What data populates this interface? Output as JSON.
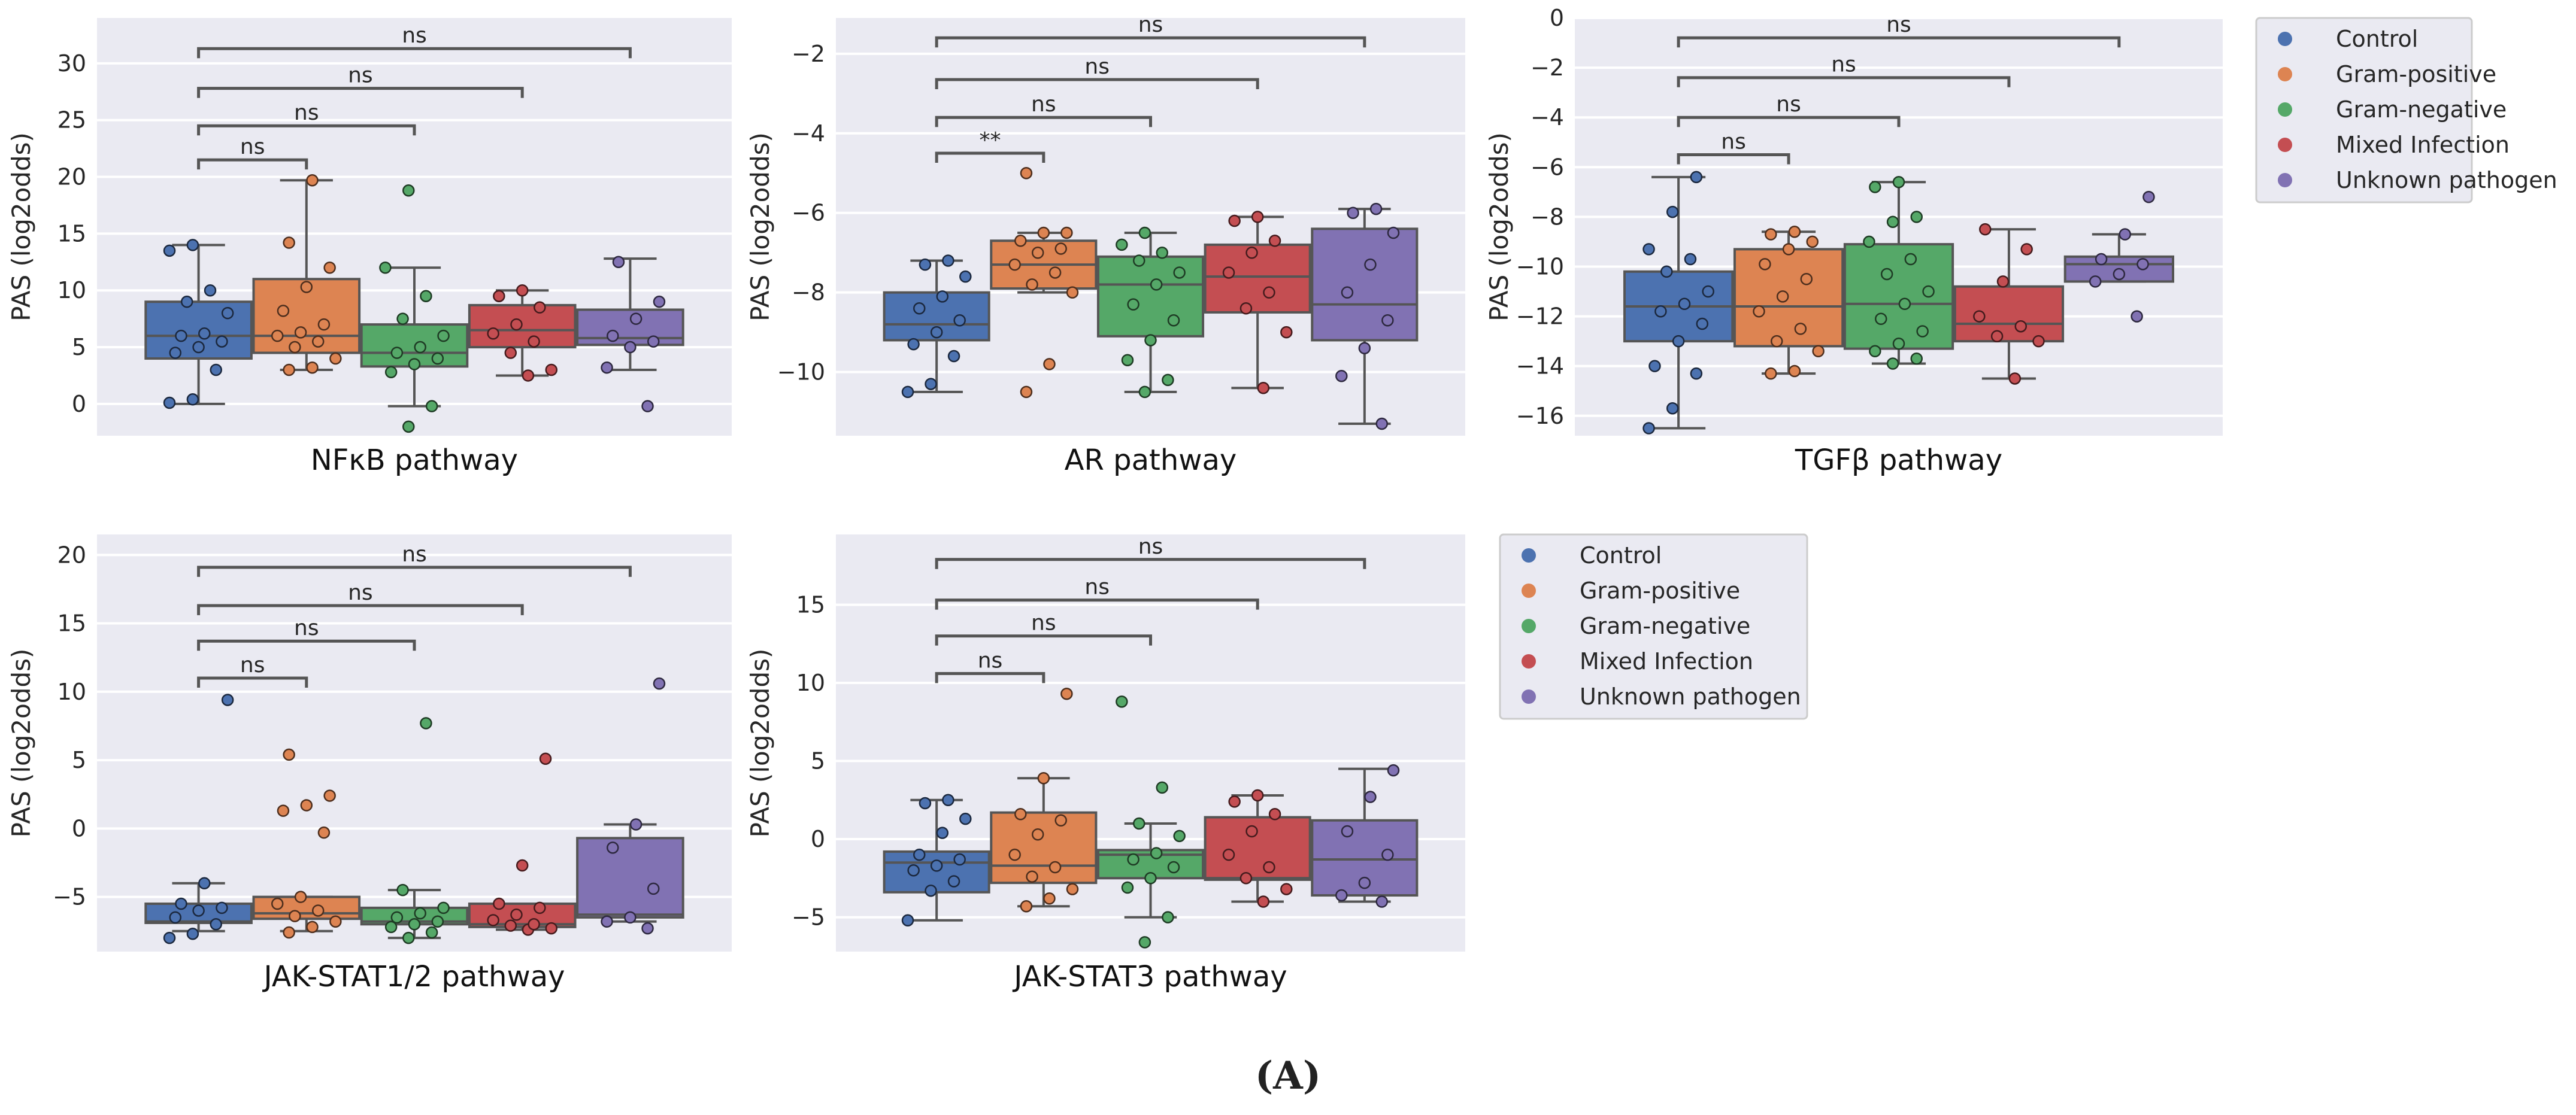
{
  "figure_label": "(A)",
  "colors": {
    "Control": "#4c72b0",
    "Gram-positive": "#dd8452",
    "Gram-negative": "#55a868",
    "Mixed Infection": "#c44e52",
    "Unknown pathogen": "#8172b3",
    "axes_bg": "#eaeaf2",
    "grid": "#ffffff",
    "bracket": "#555555"
  },
  "legends": [
    {
      "entries": [
        "Control",
        "Gram-positive",
        "Gram-negative",
        "Mixed Infection",
        "Unknown pathogen"
      ]
    },
    {
      "entries": [
        "Control",
        "Gram-positive",
        "Gram-negative",
        "Mixed Infection",
        "Unknown pathogen"
      ]
    }
  ],
  "chart_data": [
    {
      "type": "box",
      "title": "NFκB pathway",
      "xlabel": "NFκB pathway",
      "ylabel": "PAS (log2odds)",
      "ylim": [
        -2.8,
        34
      ],
      "yticks": [
        0,
        5,
        10,
        15,
        20,
        25,
        30
      ],
      "ytick_labels": [
        "0",
        "5",
        "10",
        "15",
        "20",
        "25",
        "30"
      ],
      "groups": [
        "Control",
        "Gram-positive",
        "Gram-negative",
        "Mixed Infection",
        "Unknown pathogen"
      ],
      "boxes": [
        {
          "group": "Control",
          "wlo": 0,
          "q1": 4,
          "median": 6,
          "q3": 9,
          "whi": 14,
          "points": [
            0.1,
            0.4,
            3,
            4.5,
            5,
            5.5,
            6,
            6.2,
            8,
            9,
            10,
            13.5,
            14
          ]
        },
        {
          "group": "Gram-positive",
          "wlo": 3,
          "q1": 4.5,
          "median": 6,
          "q3": 11,
          "whi": 19.7,
          "points": [
            3,
            3.2,
            4,
            5,
            5.5,
            6,
            6.3,
            7,
            8.2,
            10.3,
            12,
            14.2,
            19.7
          ]
        },
        {
          "group": "Gram-negative",
          "wlo": -0.2,
          "q1": 3.3,
          "median": 4.5,
          "q3": 7,
          "whi": 12,
          "points": [
            -2,
            -0.2,
            2.8,
            3.5,
            4,
            4.5,
            5,
            6,
            7.5,
            9.5,
            12,
            18.8
          ]
        },
        {
          "group": "Mixed Infection",
          "wlo": 2.5,
          "q1": 5,
          "median": 6.5,
          "q3": 8.7,
          "whi": 10,
          "points": [
            2.5,
            3,
            4.5,
            5.5,
            6.2,
            7,
            8.5,
            9.5,
            10
          ]
        },
        {
          "group": "Unknown pathogen",
          "wlo": 3,
          "q1": 5.2,
          "median": 5.8,
          "q3": 8.3,
          "whi": 12.8,
          "points": [
            -0.2,
            3.2,
            5,
            5.5,
            6,
            7.5,
            9,
            12.5
          ]
        }
      ],
      "annotations": [
        {
          "from": 0,
          "to": 1,
          "y": 21.5,
          "label": "ns"
        },
        {
          "from": 0,
          "to": 2,
          "y": 24.5,
          "label": "ns"
        },
        {
          "from": 0,
          "to": 3,
          "y": 27.8,
          "label": "ns"
        },
        {
          "from": 0,
          "to": 4,
          "y": 31.3,
          "label": "ns"
        }
      ]
    },
    {
      "type": "box",
      "title": "AR pathway",
      "xlabel": "AR pathway",
      "ylabel": "PAS (log2odds)",
      "ylim": [
        -11.6,
        -1.1
      ],
      "yticks": [
        -10,
        -8,
        -6,
        -4,
        -2
      ],
      "ytick_labels": [
        "−10",
        "−8",
        "−6",
        "−4",
        "−2"
      ],
      "groups": [
        "Control",
        "Gram-positive",
        "Gram-negative",
        "Mixed Infection",
        "Unknown pathogen"
      ],
      "boxes": [
        {
          "group": "Control",
          "wlo": -10.5,
          "q1": -9.2,
          "median": -8.8,
          "q3": -8.0,
          "whi": -7.2,
          "points": [
            -10.5,
            -10.3,
            -9.6,
            -9.3,
            -9.0,
            -8.7,
            -8.4,
            -8.1,
            -7.6,
            -7.3,
            -7.2
          ]
        },
        {
          "group": "Gram-positive",
          "wlo": -8.0,
          "q1": -7.9,
          "median": -7.3,
          "q3": -6.7,
          "whi": -6.5,
          "points": [
            -10.5,
            -9.8,
            -8.0,
            -7.8,
            -7.5,
            -7.3,
            -7.0,
            -6.9,
            -6.7,
            -6.5,
            -6.5,
            -5.0
          ]
        },
        {
          "group": "Gram-negative",
          "wlo": -10.5,
          "q1": -9.1,
          "median": -7.8,
          "q3": -7.1,
          "whi": -6.5,
          "points": [
            -10.5,
            -10.2,
            -9.7,
            -9.2,
            -8.7,
            -8.3,
            -7.8,
            -7.5,
            -7.2,
            -7.0,
            -6.8,
            -6.5
          ]
        },
        {
          "group": "Mixed Infection",
          "wlo": -10.4,
          "q1": -8.5,
          "median": -7.6,
          "q3": -6.8,
          "whi": -6.1,
          "points": [
            -10.4,
            -9.0,
            -8.4,
            -8.0,
            -7.5,
            -7.0,
            -6.7,
            -6.2,
            -6.1
          ]
        },
        {
          "group": "Unknown pathogen",
          "wlo": -11.3,
          "q1": -9.2,
          "median": -8.3,
          "q3": -6.4,
          "whi": -5.9,
          "points": [
            -11.3,
            -10.1,
            -9.4,
            -8.7,
            -8.0,
            -7.3,
            -6.5,
            -6.0,
            -5.9
          ]
        }
      ],
      "annotations": [
        {
          "from": 0,
          "to": 1,
          "y": -4.5,
          "label": "**"
        },
        {
          "from": 0,
          "to": 2,
          "y": -3.6,
          "label": "ns"
        },
        {
          "from": 0,
          "to": 3,
          "y": -2.65,
          "label": "ns"
        },
        {
          "from": 0,
          "to": 4,
          "y": -1.6,
          "label": "ns"
        }
      ]
    },
    {
      "type": "box",
      "title": "TGFβ pathway",
      "xlabel": "TGFβ pathway",
      "ylabel": "PAS (log2odds)",
      "ylim": [
        -16.8,
        0
      ],
      "yticks": [
        -16,
        -14,
        -12,
        -10,
        -8,
        -6,
        -4,
        -2,
        0
      ],
      "ytick_labels": [
        "−16",
        "−14",
        "−12",
        "−10",
        "−8",
        "−6",
        "−4",
        "−2",
        "0"
      ],
      "groups": [
        "Control",
        "Gram-positive",
        "Gram-negative",
        "Mixed Infection",
        "Unknown pathogen"
      ],
      "boxes": [
        {
          "group": "Control",
          "wlo": -16.5,
          "q1": -13,
          "median": -11.6,
          "q3": -10.2,
          "whi": -6.4,
          "points": [
            -16.5,
            -15.7,
            -14.3,
            -14.0,
            -13.0,
            -12.3,
            -11.8,
            -11.5,
            -11.0,
            -10.2,
            -9.7,
            -9.3,
            -7.8,
            -6.4
          ]
        },
        {
          "group": "Gram-positive",
          "wlo": -14.3,
          "q1": -13.2,
          "median": -11.6,
          "q3": -9.3,
          "whi": -8.6,
          "points": [
            -14.3,
            -14.2,
            -13.4,
            -13.0,
            -12.5,
            -11.8,
            -11.2,
            -10.5,
            -9.9,
            -9.3,
            -9.0,
            -8.7,
            -8.6
          ]
        },
        {
          "group": "Gram-negative",
          "wlo": -13.9,
          "q1": -13.3,
          "median": -11.5,
          "q3": -9.1,
          "whi": -6.6,
          "points": [
            -13.9,
            -13.7,
            -13.4,
            -13.1,
            -12.6,
            -12.1,
            -11.5,
            -11.0,
            -10.3,
            -9.7,
            -9.0,
            -8.2,
            -8.0,
            -6.8,
            -6.6
          ]
        },
        {
          "group": "Mixed Infection",
          "wlo": -14.5,
          "q1": -13.0,
          "median": -12.3,
          "q3": -10.8,
          "whi": -8.5,
          "points": [
            -14.5,
            -13.0,
            -12.8,
            -12.4,
            -12.0,
            -10.6,
            -9.3,
            -8.5
          ]
        },
        {
          "group": "Unknown pathogen",
          "wlo": -10.6,
          "q1": -10.6,
          "median": -9.9,
          "q3": -9.6,
          "whi": -8.7,
          "points": [
            -12.0,
            -10.6,
            -10.3,
            -9.9,
            -9.7,
            -8.7,
            -7.2
          ]
        }
      ],
      "annotations": [
        {
          "from": 0,
          "to": 1,
          "y": -5.5,
          "label": "ns"
        },
        {
          "from": 0,
          "to": 2,
          "y": -4.0,
          "label": "ns"
        },
        {
          "from": 0,
          "to": 3,
          "y": -2.4,
          "label": "ns"
        },
        {
          "from": 0,
          "to": 4,
          "y": -0.8,
          "label": "ns"
        }
      ]
    },
    {
      "type": "box",
      "title": "JAK-STAT1/2 pathway",
      "xlabel": "JAK-STAT1/2 pathway",
      "ylabel": "PAS (log2odds)",
      "ylim": [
        -9,
        21.5
      ],
      "yticks": [
        -5,
        0,
        5,
        10,
        15,
        20
      ],
      "ytick_labels": [
        "−5",
        "0",
        "5",
        "10",
        "15",
        "20"
      ],
      "groups": [
        "Control",
        "Gram-positive",
        "Gram-negative",
        "Mixed Infection",
        "Unknown pathogen"
      ],
      "boxes": [
        {
          "group": "Control",
          "wlo": -7.5,
          "q1": -6.9,
          "median": -6.8,
          "q3": -5.5,
          "whi": -4.0,
          "points": [
            -8.0,
            -7.7,
            -7.0,
            -6.5,
            -6.0,
            -5.8,
            -5.5,
            -4.0,
            9.4
          ]
        },
        {
          "group": "Gram-positive",
          "wlo": -7.5,
          "q1": -6.6,
          "median": -6.2,
          "q3": -5.0,
          "whi": -5.0,
          "points": [
            -7.6,
            -7.2,
            -6.8,
            -6.4,
            -6.0,
            -5.5,
            -5.0,
            -0.3,
            1.3,
            1.7,
            2.4,
            5.4
          ]
        },
        {
          "group": "Gram-negative",
          "wlo": -8.0,
          "q1": -7.0,
          "median": -6.8,
          "q3": -5.8,
          "whi": -4.5,
          "points": [
            -8.0,
            -7.6,
            -7.2,
            -7.0,
            -6.8,
            -6.5,
            -6.2,
            -5.8,
            -4.5,
            7.7
          ]
        },
        {
          "group": "Mixed Infection",
          "wlo": -7.4,
          "q1": -7.2,
          "median": -7.0,
          "q3": -5.5,
          "whi": -5.5,
          "points": [
            -7.4,
            -7.3,
            -7.1,
            -7.0,
            -6.7,
            -6.3,
            -5.8,
            -5.5,
            -2.7,
            5.1
          ]
        },
        {
          "group": "Unknown pathogen",
          "wlo": -6.8,
          "q1": -6.5,
          "median": -6.3,
          "q3": -0.7,
          "whi": 0.3,
          "points": [
            -7.3,
            -6.8,
            -6.5,
            -4.4,
            -1.4,
            0.3,
            10.6
          ]
        }
      ],
      "annotations": [
        {
          "from": 0,
          "to": 1,
          "y": 11.0,
          "label": "ns"
        },
        {
          "from": 0,
          "to": 2,
          "y": 13.7,
          "label": "ns"
        },
        {
          "from": 0,
          "to": 3,
          "y": 16.3,
          "label": "ns"
        },
        {
          "from": 0,
          "to": 4,
          "y": 19.1,
          "label": "ns"
        }
      ]
    },
    {
      "type": "box",
      "title": "JAK-STAT3 pathway",
      "xlabel": "JAK-STAT3 pathway",
      "ylabel": "PAS (log2odds)",
      "ylim": [
        -7.2,
        19.5
      ],
      "yticks": [
        -5,
        0,
        5,
        10,
        15
      ],
      "ytick_labels": [
        "−5",
        "0",
        "5",
        "10",
        "15"
      ],
      "groups": [
        "Control",
        "Gram-positive",
        "Gram-negative",
        "Mixed Infection",
        "Unknown pathogen"
      ],
      "boxes": [
        {
          "group": "Control",
          "wlo": -5.2,
          "q1": -3.4,
          "median": -1.5,
          "q3": -0.8,
          "whi": 2.5,
          "points": [
            -5.2,
            -3.3,
            -2.7,
            -2.0,
            -1.7,
            -1.3,
            -1.0,
            0.4,
            1.3,
            2.3,
            2.5
          ]
        },
        {
          "group": "Gram-positive",
          "wlo": -4.3,
          "q1": -2.8,
          "median": -1.7,
          "q3": 1.7,
          "whi": 3.9,
          "points": [
            -4.3,
            -3.8,
            -3.2,
            -2.4,
            -1.8,
            -1.0,
            0.3,
            1.2,
            1.6,
            3.9,
            9.3
          ]
        },
        {
          "group": "Gram-negative",
          "wlo": -5.0,
          "q1": -2.5,
          "median": -1.0,
          "q3": -0.7,
          "whi": 1.0,
          "points": [
            -6.6,
            -5.0,
            -3.1,
            -2.5,
            -1.8,
            -1.3,
            -0.9,
            0.2,
            1.0,
            3.3,
            8.8
          ]
        },
        {
          "group": "Mixed Infection",
          "wlo": -4.0,
          "q1": -2.6,
          "median": -2.5,
          "q3": 1.4,
          "whi": 2.8,
          "points": [
            -4.0,
            -3.2,
            -2.5,
            -1.8,
            -1.0,
            0.5,
            1.6,
            2.4,
            2.8
          ]
        },
        {
          "group": "Unknown pathogen",
          "wlo": -4.0,
          "q1": -3.6,
          "median": -1.3,
          "q3": 1.2,
          "whi": 4.5,
          "points": [
            -4.0,
            -3.6,
            -2.8,
            -1.0,
            0.5,
            2.7,
            4.4
          ]
        }
      ],
      "annotations": [
        {
          "from": 0,
          "to": 1,
          "y": 10.6,
          "label": "ns"
        },
        {
          "from": 0,
          "to": 2,
          "y": 13.0,
          "label": "ns"
        },
        {
          "from": 0,
          "to": 3,
          "y": 15.3,
          "label": "ns"
        },
        {
          "from": 0,
          "to": 4,
          "y": 17.9,
          "label": "ns"
        }
      ]
    }
  ]
}
